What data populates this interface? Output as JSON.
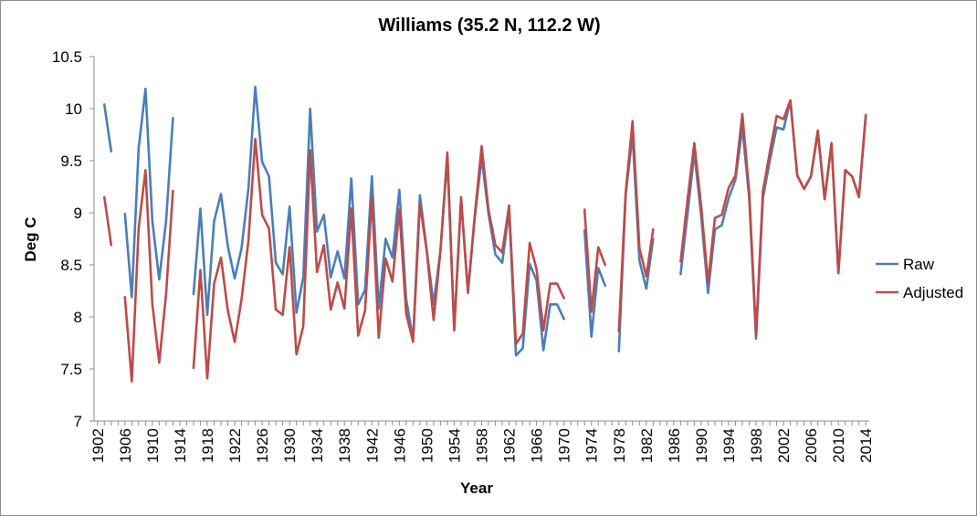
{
  "chart_data": {
    "type": "line",
    "title": "Williams (35.2 N, 112.2 W)",
    "xlabel": "Year",
    "ylabel": "Deg C",
    "ylim": [
      7,
      10.5
    ],
    "yticks": [
      "7",
      "7.5",
      "8",
      "8.5",
      "9",
      "9.5",
      "10",
      "10.5"
    ],
    "ytick_values": [
      7,
      7.5,
      8,
      8.5,
      9,
      9.5,
      10,
      10.5
    ],
    "xlim": [
      1902,
      2014
    ],
    "xticks": [
      "1902",
      "1906",
      "1910",
      "1914",
      "1918",
      "1922",
      "1926",
      "1930",
      "1934",
      "1938",
      "1942",
      "1946",
      "1950",
      "1954",
      "1958",
      "1962",
      "1966",
      "1970",
      "1974",
      "1978",
      "1982",
      "1986",
      "1990",
      "1994",
      "1998",
      "2002",
      "2006",
      "2010",
      "2014"
    ],
    "legend_position": "right",
    "series": [
      {
        "name": "Raw",
        "color": "#4a7ebb",
        "x": [
          1903,
          1904,
          null,
          1906,
          1907,
          1908,
          1909,
          1910,
          1911,
          1912,
          1913,
          null,
          1916,
          1917,
          1918,
          1919,
          1920,
          1921,
          1922,
          1923,
          1924,
          1925,
          1926,
          1927,
          1928,
          1929,
          1930,
          1931,
          1932,
          1933,
          1934,
          1935,
          1936,
          1937,
          1938,
          1939,
          1940,
          1941,
          1942,
          1943,
          1944,
          1945,
          1946,
          1947,
          1948,
          1949,
          1950,
          1951,
          1952,
          1953,
          1954,
          1955,
          1956,
          1957,
          1958,
          1959,
          1960,
          1961,
          1962,
          1963,
          1964,
          1965,
          1966,
          1967,
          1968,
          1969,
          1970,
          null,
          1973,
          1974,
          1975,
          1976,
          null,
          1978,
          1979,
          1980,
          1981,
          1982,
          1983,
          null,
          1987,
          1988,
          1989,
          1990,
          1991,
          1992,
          1993,
          1994,
          1995,
          1996,
          1997,
          1998,
          1999,
          2000,
          2001,
          2002,
          2003,
          2004,
          2005,
          2006,
          2007,
          2008,
          2009,
          2010,
          2011,
          2012,
          2013,
          2014
        ],
        "y": [
          10.04,
          9.59,
          null,
          8.99,
          8.19,
          9.62,
          10.19,
          8.92,
          8.36,
          8.92,
          9.91,
          null,
          8.22,
          9.04,
          8.02,
          8.92,
          9.18,
          8.68,
          8.37,
          8.66,
          9.23,
          10.21,
          9.49,
          9.35,
          8.52,
          8.41,
          9.06,
          8.04,
          8.38,
          10.0,
          8.82,
          8.98,
          8.38,
          8.63,
          8.37,
          9.33,
          8.12,
          8.26,
          9.35,
          8.08,
          8.75,
          8.57,
          9.22,
          8.17,
          7.78,
          9.17,
          8.64,
          8.12,
          8.64,
          9.53,
          7.88,
          9.12,
          8.25,
          8.95,
          9.53,
          8.99,
          8.6,
          8.52,
          9.02,
          7.63,
          7.7,
          8.51,
          8.35,
          7.68,
          8.12,
          8.12,
          7.98,
          null,
          8.83,
          7.81,
          8.47,
          8.3,
          null,
          7.67,
          9.18,
          9.75,
          8.54,
          8.27,
          8.75,
          null,
          8.41,
          8.98,
          9.58,
          8.97,
          8.23,
          8.84,
          8.88,
          9.14,
          9.32,
          9.82,
          9.14,
          7.79,
          9.14,
          9.5,
          9.82,
          9.8,
          10.08,
          9.36,
          9.23,
          9.35,
          9.77,
          9.13,
          9.66,
          8.42,
          9.41,
          9.35,
          9.16,
          9.94
        ]
      },
      {
        "name": "Adjusted",
        "color": "#be4b48",
        "x": [
          1903,
          1904,
          null,
          1906,
          1907,
          1908,
          1909,
          1910,
          1911,
          1912,
          1913,
          null,
          1916,
          1917,
          1918,
          1919,
          1920,
          1921,
          1922,
          1923,
          1924,
          1925,
          1926,
          1927,
          1928,
          1929,
          1930,
          1931,
          1932,
          1933,
          1934,
          1935,
          1936,
          1937,
          1938,
          1939,
          1940,
          1941,
          1942,
          1943,
          1944,
          1945,
          1946,
          1947,
          1948,
          1949,
          1950,
          1951,
          1952,
          1953,
          1954,
          1955,
          1956,
          1957,
          1958,
          1959,
          1960,
          1961,
          1962,
          1963,
          1964,
          1965,
          1966,
          1967,
          1968,
          1969,
          1970,
          null,
          1973,
          1974,
          1975,
          1976,
          null,
          1978,
          1979,
          1980,
          1981,
          1982,
          1983,
          null,
          1987,
          1988,
          1989,
          1990,
          1991,
          1992,
          1993,
          1994,
          1995,
          1996,
          1997,
          1998,
          1999,
          2000,
          2001,
          2002,
          2003,
          2004,
          2005,
          2006,
          2007,
          2008,
          2009,
          2010,
          2011,
          2012,
          2013,
          2014
        ],
        "y": [
          9.15,
          8.69,
          null,
          8.19,
          7.38,
          8.85,
          9.41,
          8.12,
          7.56,
          8.22,
          9.21,
          null,
          7.51,
          8.45,
          7.41,
          8.32,
          8.57,
          8.06,
          7.76,
          8.17,
          8.73,
          9.71,
          8.98,
          8.85,
          8.07,
          8.02,
          8.67,
          7.64,
          7.91,
          9.6,
          8.43,
          8.69,
          8.07,
          8.33,
          8.08,
          9.04,
          7.82,
          8.06,
          9.15,
          7.8,
          8.56,
          8.34,
          9.03,
          8.03,
          7.76,
          9.09,
          8.63,
          7.97,
          8.64,
          9.58,
          7.87,
          9.15,
          8.23,
          8.98,
          9.64,
          9.03,
          8.69,
          8.62,
          9.07,
          7.74,
          7.84,
          8.71,
          8.46,
          7.87,
          8.32,
          8.32,
          8.18,
          null,
          9.03,
          8.05,
          8.67,
          8.5,
          null,
          7.86,
          9.2,
          9.88,
          8.66,
          8.39,
          8.84,
          null,
          8.53,
          9.12,
          9.67,
          9.06,
          8.33,
          8.95,
          8.98,
          9.24,
          9.36,
          9.95,
          9.2,
          7.83,
          9.21,
          9.58,
          9.93,
          9.9,
          10.08,
          9.36,
          9.23,
          9.35,
          9.79,
          9.13,
          9.67,
          8.42,
          9.41,
          9.35,
          9.15,
          9.94
        ]
      }
    ]
  }
}
